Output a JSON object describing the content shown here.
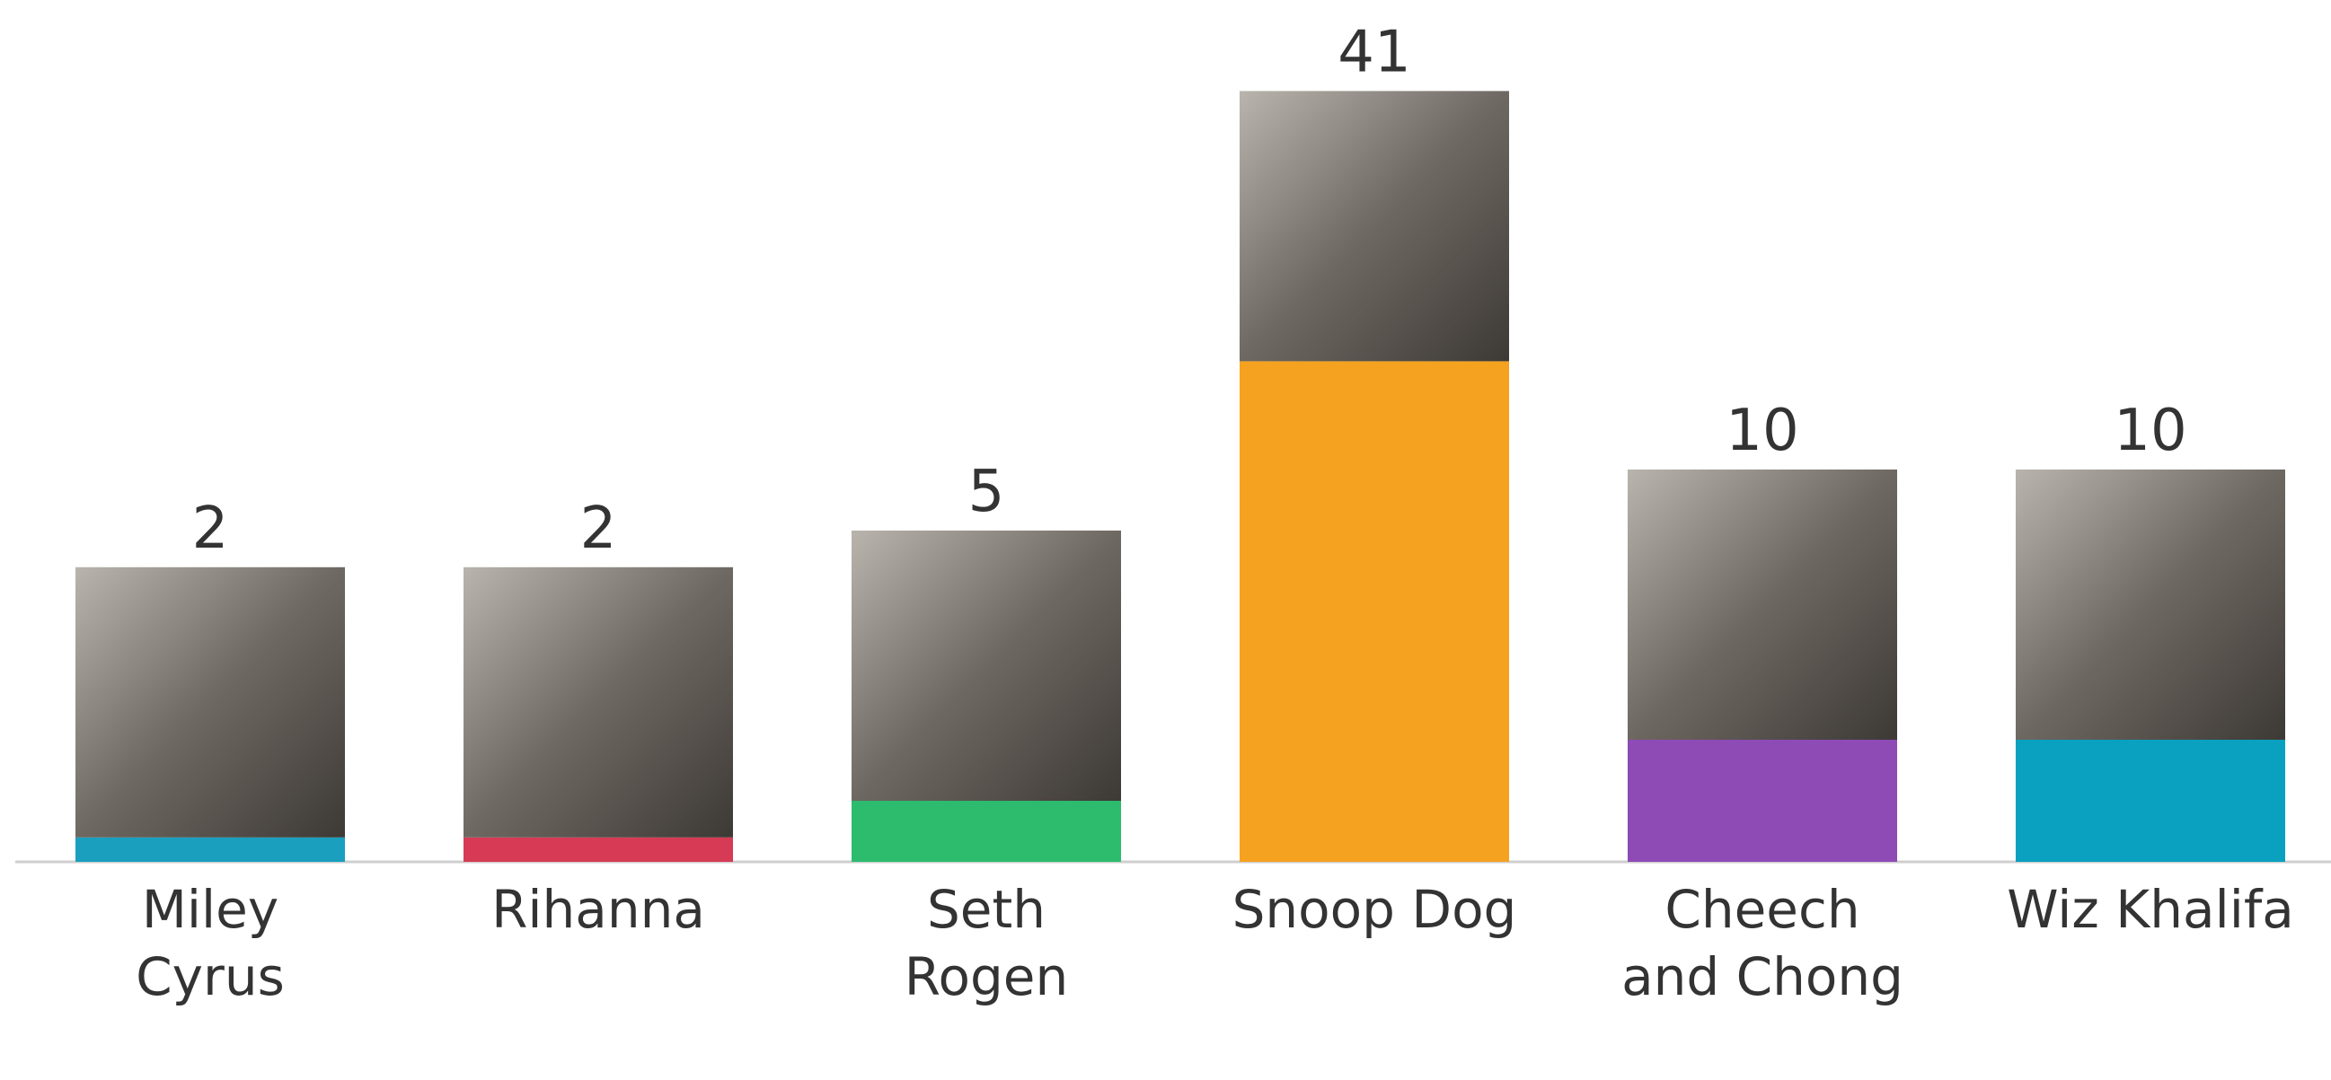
{
  "chart_data": {
    "type": "bar",
    "categories": [
      "Miley Cyrus",
      "Rihanna",
      "Seth Rogen",
      "Snoop Dog",
      "Cheech and Chong",
      "Wiz Khalifa"
    ],
    "values": [
      2,
      2,
      5,
      41,
      10,
      10
    ],
    "colors": [
      "#1a9fbf",
      "#d63a55",
      "#2dbb6e",
      "#f4a21f",
      "#8e4bb5",
      "#0aa0bf"
    ]
  }
}
